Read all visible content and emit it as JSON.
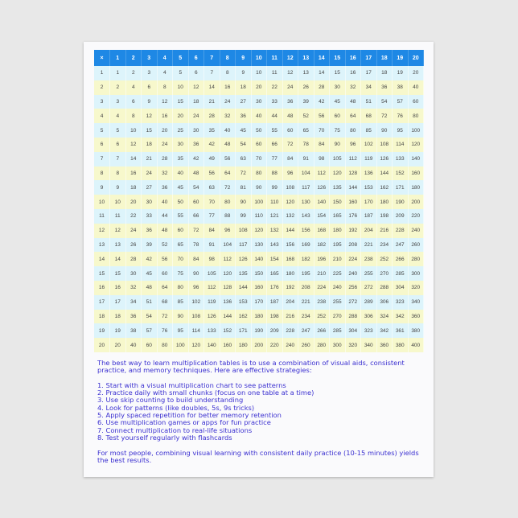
{
  "table": {
    "header": [
      "×",
      "1",
      "2",
      "3",
      "4",
      "5",
      "6",
      "7",
      "8",
      "9",
      "10",
      "11",
      "12",
      "13",
      "14",
      "15",
      "16",
      "17",
      "18",
      "19",
      "20"
    ],
    "rows": [
      [
        1,
        1,
        2,
        3,
        4,
        5,
        6,
        7,
        8,
        9,
        10,
        11,
        12,
        13,
        14,
        15,
        16,
        17,
        18,
        19,
        20
      ],
      [
        2,
        2,
        4,
        6,
        8,
        10,
        12,
        14,
        16,
        18,
        20,
        22,
        24,
        26,
        28,
        30,
        32,
        34,
        36,
        38,
        40
      ],
      [
        3,
        3,
        6,
        9,
        12,
        15,
        18,
        21,
        24,
        27,
        30,
        33,
        36,
        39,
        42,
        45,
        48,
        51,
        54,
        57,
        60
      ],
      [
        4,
        4,
        8,
        12,
        16,
        20,
        24,
        28,
        32,
        36,
        40,
        44,
        48,
        52,
        56,
        60,
        64,
        68,
        72,
        76,
        80
      ],
      [
        5,
        5,
        10,
        15,
        20,
        25,
        30,
        35,
        40,
        45,
        50,
        55,
        60,
        65,
        70,
        75,
        80,
        85,
        90,
        95,
        100
      ],
      [
        6,
        6,
        12,
        18,
        24,
        30,
        36,
        42,
        48,
        54,
        60,
        66,
        72,
        78,
        84,
        90,
        96,
        102,
        108,
        114,
        120
      ],
      [
        7,
        7,
        14,
        21,
        28,
        35,
        42,
        49,
        56,
        63,
        70,
        77,
        84,
        91,
        98,
        105,
        112,
        119,
        126,
        133,
        140
      ],
      [
        8,
        8,
        16,
        24,
        32,
        40,
        48,
        56,
        64,
        72,
        80,
        88,
        96,
        104,
        112,
        120,
        128,
        136,
        144,
        152,
        160
      ],
      [
        9,
        9,
        18,
        27,
        36,
        45,
        54,
        63,
        72,
        81,
        90,
        99,
        108,
        117,
        126,
        135,
        144,
        153,
        162,
        171,
        180
      ],
      [
        10,
        10,
        20,
        30,
        40,
        50,
        60,
        70,
        80,
        90,
        100,
        110,
        120,
        130,
        140,
        150,
        160,
        170,
        180,
        190,
        200
      ],
      [
        11,
        11,
        22,
        33,
        44,
        55,
        66,
        77,
        88,
        99,
        110,
        121,
        132,
        143,
        154,
        165,
        176,
        187,
        198,
        209,
        220
      ],
      [
        12,
        12,
        24,
        36,
        48,
        60,
        72,
        84,
        96,
        108,
        120,
        132,
        144,
        156,
        168,
        180,
        192,
        204,
        216,
        228,
        240
      ],
      [
        13,
        13,
        26,
        39,
        52,
        65,
        78,
        91,
        104,
        117,
        130,
        143,
        156,
        169,
        182,
        195,
        208,
        221,
        234,
        247,
        260
      ],
      [
        14,
        14,
        28,
        42,
        56,
        70,
        84,
        98,
        112,
        126,
        140,
        154,
        168,
        182,
        196,
        210,
        224,
        238,
        252,
        266,
        280
      ],
      [
        15,
        15,
        30,
        45,
        60,
        75,
        90,
        105,
        120,
        135,
        150,
        165,
        180,
        195,
        210,
        225,
        240,
        255,
        270,
        285,
        300
      ],
      [
        16,
        16,
        32,
        48,
        64,
        80,
        96,
        112,
        128,
        144,
        160,
        176,
        192,
        208,
        224,
        240,
        256,
        272,
        288,
        304,
        320
      ],
      [
        17,
        17,
        34,
        51,
        68,
        85,
        102,
        119,
        136,
        153,
        170,
        187,
        204,
        221,
        238,
        255,
        272,
        289,
        306,
        323,
        340
      ],
      [
        18,
        18,
        36,
        54,
        72,
        90,
        108,
        126,
        144,
        162,
        180,
        198,
        216,
        234,
        252,
        270,
        288,
        306,
        324,
        342,
        360
      ],
      [
        19,
        19,
        38,
        57,
        76,
        95,
        114,
        133,
        152,
        171,
        190,
        209,
        228,
        247,
        266,
        285,
        304,
        323,
        342,
        361,
        380
      ],
      [
        20,
        20,
        40,
        60,
        80,
        100,
        120,
        140,
        160,
        180,
        200,
        220,
        240,
        260,
        280,
        300,
        320,
        340,
        360,
        380,
        400
      ]
    ]
  },
  "text": {
    "intro": "The best way to learn multiplication tables is to use a combination of visual aids, consistent practice, and memory techniques. Here are effective strategies:",
    "strategies": [
      "1. Start with a visual multiplication chart to see patterns",
      "2. Practice daily with small chunks (focus on one table at a time)",
      "3. Use skip counting to build understanding",
      "4. Look for patterns (like doubles, 5s, 9s tricks)",
      "5. Apply spaced repetition for better memory retention",
      "6. Use multiplication games or apps for fun practice",
      "7. Connect multiplication to real-life situations",
      "8. Test yourself regularly with flashcards"
    ],
    "conclusion": "For most people, combining visual learning with consistent daily practice (10-15 minutes) yields the best results."
  },
  "colors": {
    "header": "#1e88e5",
    "row_odd": "#ddf4fb",
    "row_even": "#f7f8cc",
    "text": "#3a2fd0"
  }
}
